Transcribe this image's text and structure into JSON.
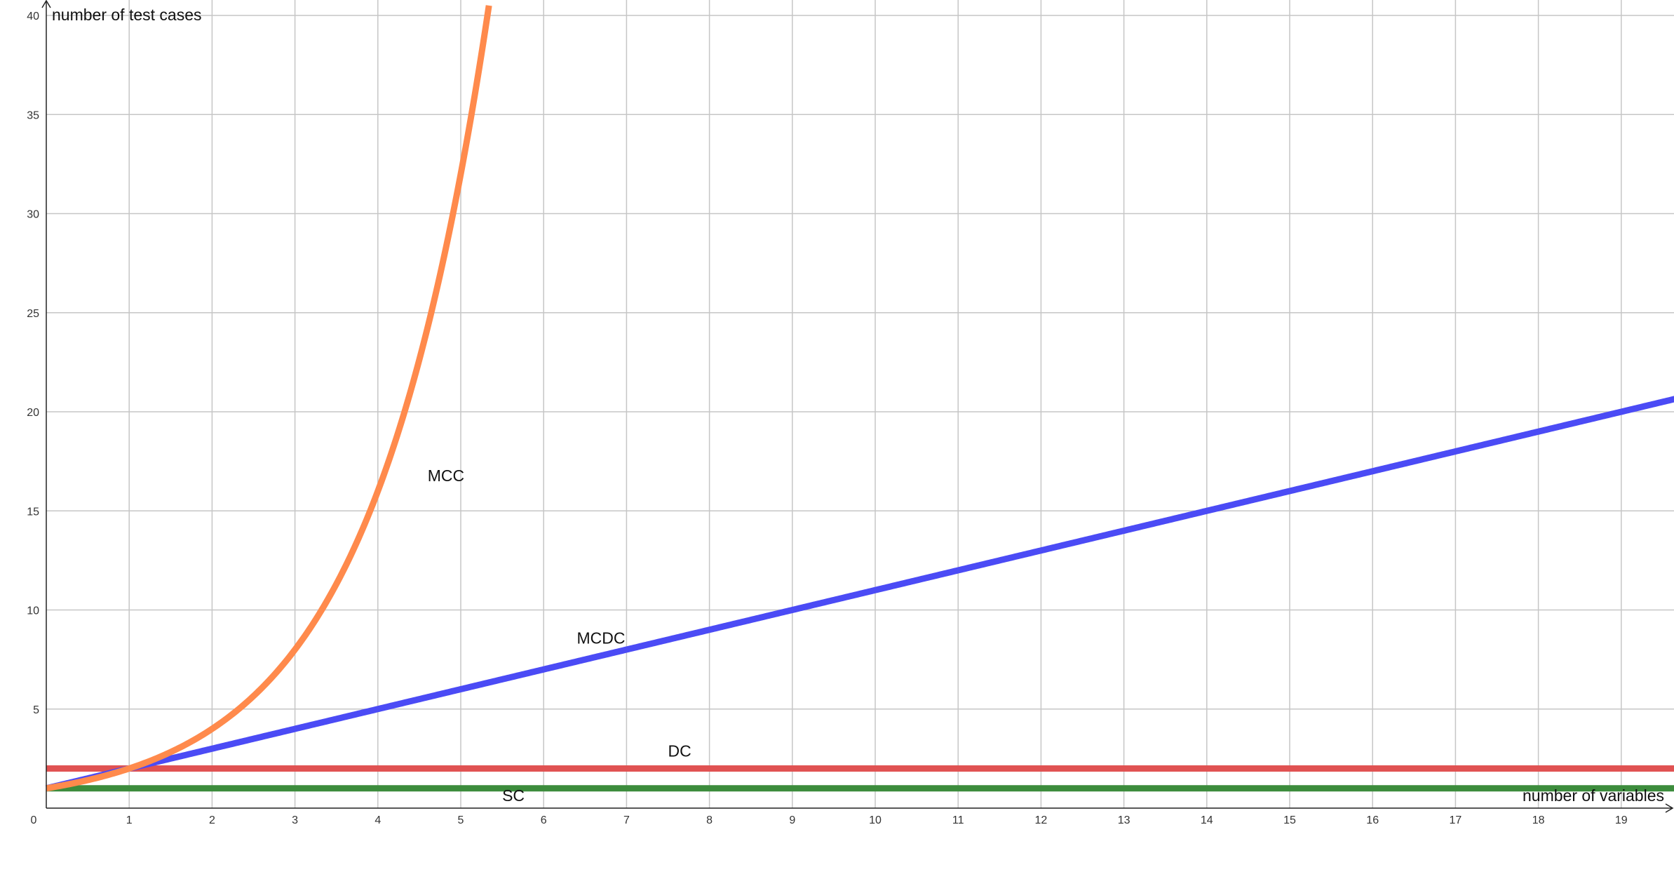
{
  "chart_data": {
    "type": "line",
    "xlabel": "number of variables",
    "ylabel": "number of test cases",
    "xlim": [
      0,
      19.7
    ],
    "ylim": [
      0,
      40
    ],
    "x_ticks": [
      0,
      1,
      2,
      3,
      4,
      5,
      6,
      7,
      8,
      9,
      10,
      11,
      12,
      13,
      14,
      15,
      16,
      17,
      18,
      19
    ],
    "y_ticks": [
      5,
      10,
      15,
      20,
      25,
      30,
      35,
      40
    ],
    "grid": true,
    "series": [
      {
        "name": "MCC",
        "formula": "2^x",
        "color": "#ff8a4c",
        "label_x": 4.6,
        "label_y": 16.5
      },
      {
        "name": "MCDC",
        "formula": "x+1",
        "color": "#4b4bf5",
        "label_x": 6.4,
        "label_y": 8.3
      },
      {
        "name": "DC",
        "formula": "2",
        "color": "#e05252",
        "label_x": 7.5,
        "label_y": 2.6
      },
      {
        "name": "SC",
        "formula": "1",
        "color": "#3c8c3c",
        "label_x": 5.5,
        "label_y": 0.35
      }
    ],
    "samples": {
      "MCC": {
        "x": [
          0,
          0.5,
          1,
          1.5,
          2,
          2.5,
          3,
          3.5,
          4,
          4.25,
          4.5,
          4.75,
          5,
          5.1,
          5.2,
          5.3
        ],
        "y": [
          1,
          1.41,
          2,
          2.83,
          4,
          5.66,
          8,
          11.31,
          16,
          19.03,
          22.63,
          26.91,
          32,
          34.3,
          36.76,
          39.4
        ]
      },
      "MCDC": {
        "x": [
          0,
          19.7
        ],
        "y": [
          1,
          20.7
        ]
      },
      "DC": {
        "x": [
          0,
          19.7
        ],
        "y": [
          2,
          2
        ]
      },
      "SC": {
        "x": [
          0,
          19.7
        ],
        "y": [
          1,
          1
        ]
      }
    }
  }
}
